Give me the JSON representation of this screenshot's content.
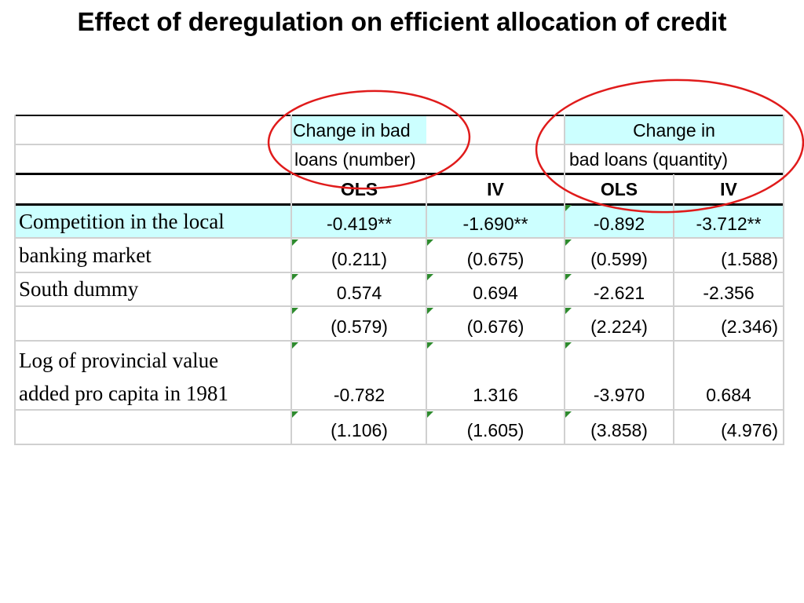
{
  "title": "Effect of deregulation on efficient allocation of credit",
  "table": {
    "group_headers": {
      "bad_loans_number_line1": "Change in bad",
      "bad_loans_number_line2": "loans (number)",
      "bad_loans_quantity_line1": "Change in",
      "bad_loans_quantity_line2": "bad loans (quantity)"
    },
    "method_headers": [
      "OLS",
      "IV",
      "OLS",
      "IV"
    ],
    "rows": [
      {
        "label": "Competition in the local",
        "values": [
          "-0.419**",
          "-1.690**",
          "-0.892",
          "-3.712**"
        ]
      },
      {
        "label": "banking market",
        "values": [
          "(0.211)",
          "(0.675)",
          "(0.599)",
          "(1.588)"
        ]
      },
      {
        "label": "South dummy",
        "values": [
          "0.574",
          "0.694",
          "-2.621",
          "-2.356"
        ]
      },
      {
        "label": "",
        "values": [
          "(0.579)",
          "(0.676)",
          "(2.224)",
          "(2.346)"
        ]
      },
      {
        "label": "Log of provincial value",
        "label2": "added pro capita in 1981",
        "values": [
          "-0.782",
          "1.316",
          "-3.970",
          "0.684"
        ]
      },
      {
        "label": "",
        "values": [
          "(1.106)",
          "(1.605)",
          "(3.858)",
          "(4.976)"
        ]
      }
    ]
  },
  "colors": {
    "highlight": "#ccffff",
    "annotation_circle": "#e01b1b",
    "comment_marker": "#2e8b2e"
  }
}
